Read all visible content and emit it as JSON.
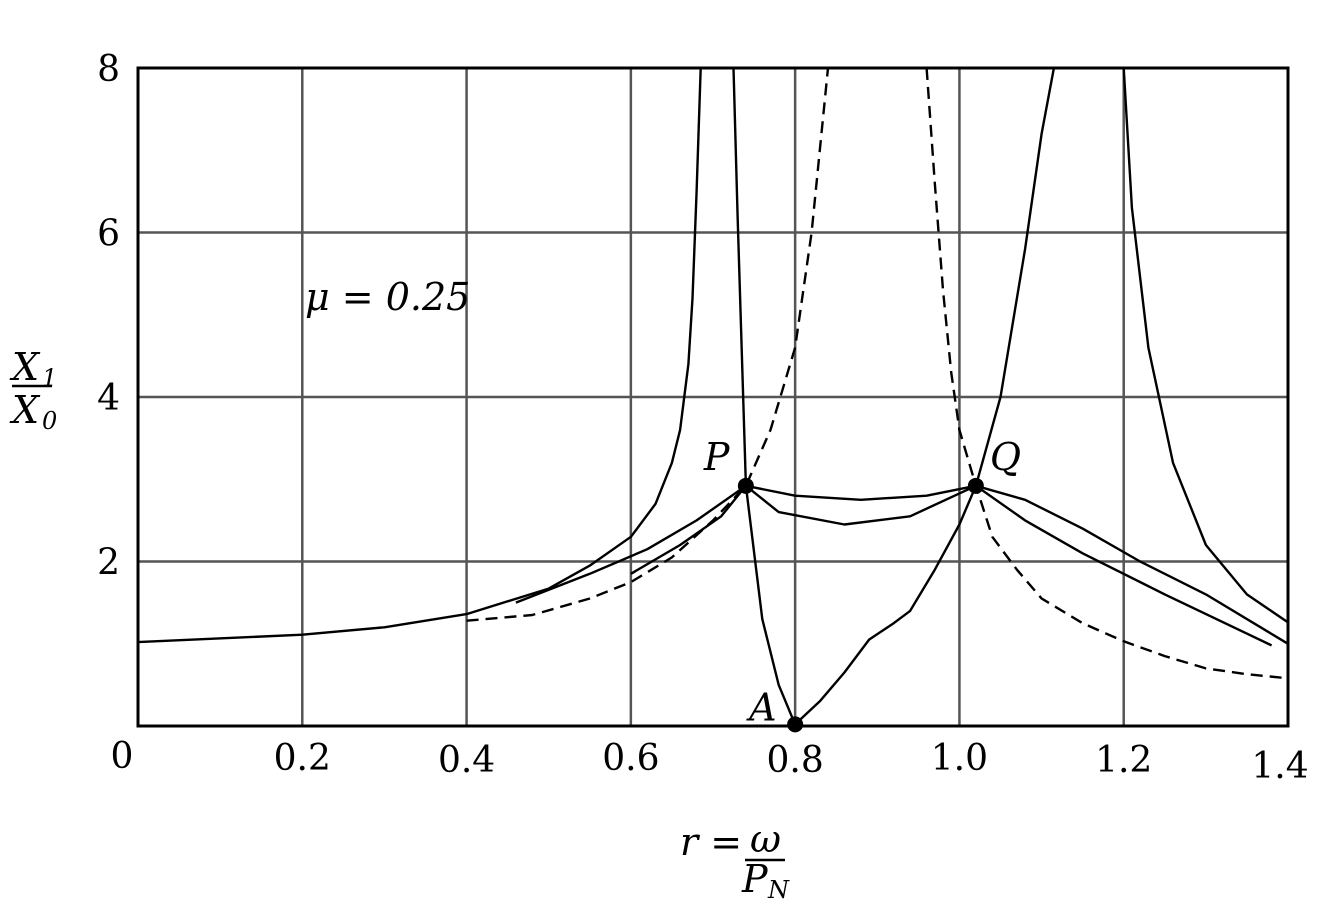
{
  "chart_data": {
    "type": "line",
    "xlim": [
      0,
      1.4
    ],
    "ylim": [
      0,
      8
    ],
    "grid": true,
    "x_ticks": [
      "0",
      "0.2",
      "0.4",
      "0.6",
      "0.8",
      "1.0",
      "1.2",
      "1.4"
    ],
    "x_tick_values": [
      0,
      0.2,
      0.4,
      0.6,
      0.8,
      1.0,
      1.2,
      1.4
    ],
    "y_ticks": [
      "2",
      "4",
      "6",
      "8"
    ],
    "y_tick_values": [
      2,
      4,
      6,
      8
    ],
    "xlabel": {
      "prefix": "r =",
      "numerator": "ω",
      "denominator": "P",
      "denominator_sub": "N"
    },
    "ylabel": {
      "numerator": "X",
      "numerator_sub": "1",
      "denominator": "X",
      "denominator_sub": "0"
    },
    "annotation": "μ = 0.25",
    "points": [
      {
        "label": "P",
        "x": 0.74,
        "y": 2.92
      },
      {
        "label": "Q",
        "x": 1.02,
        "y": 2.92
      },
      {
        "label": "A",
        "x": 0.8,
        "y": 0.02
      }
    ],
    "series": [
      {
        "style": "solid",
        "segments": [
          [
            [
              0,
              1.02
            ],
            [
              0.2,
              1.11
            ],
            [
              0.3,
              1.2
            ],
            [
              0.4,
              1.36
            ],
            [
              0.5,
              1.67
            ],
            [
              0.55,
              1.95
            ],
            [
              0.6,
              2.3
            ],
            [
              0.63,
              2.7
            ],
            [
              0.65,
              3.2
            ],
            [
              0.66,
              3.6
            ],
            [
              0.67,
              4.4
            ],
            [
              0.675,
              5.2
            ],
            [
              0.68,
              6.5
            ],
            [
              0.685,
              8
            ]
          ],
          [
            [
              1.2,
              8
            ],
            [
              1.21,
              6.3
            ],
            [
              1.23,
              4.6
            ],
            [
              1.26,
              3.2
            ],
            [
              1.3,
              2.2
            ],
            [
              1.35,
              1.6
            ],
            [
              1.4,
              1.26
            ]
          ]
        ]
      },
      {
        "style": "solid",
        "segments": [
          [
            [
              0.725,
              8
            ],
            [
              0.73,
              6.2
            ],
            [
              0.74,
              2.92
            ],
            [
              0.76,
              1.3
            ],
            [
              0.78,
              0.5
            ],
            [
              0.8,
              0.02
            ]
          ],
          [
            [
              0.8,
              0.02
            ],
            [
              0.83,
              0.3
            ],
            [
              0.86,
              0.65
            ],
            [
              0.89,
              1.05
            ],
            [
              0.92,
              1.25
            ],
            [
              0.94,
              1.4
            ],
            [
              0.97,
              1.9
            ],
            [
              1.0,
              2.45
            ],
            [
              1.02,
              2.92
            ],
            [
              1.05,
              4.0
            ],
            [
              1.08,
              5.8
            ],
            [
              1.1,
              7.2
            ],
            [
              1.115,
              8
            ]
          ]
        ]
      },
      {
        "style": "solid",
        "segments": [
          [
            [
              0.46,
              1.5
            ],
            [
              0.55,
              1.85
            ],
            [
              0.62,
              2.15
            ],
            [
              0.68,
              2.5
            ],
            [
              0.74,
              2.92
            ],
            [
              0.8,
              2.8
            ],
            [
              0.88,
              2.75
            ],
            [
              0.96,
              2.8
            ],
            [
              1.02,
              2.92
            ],
            [
              1.08,
              2.75
            ],
            [
              1.15,
              2.4
            ],
            [
              1.22,
              2.0
            ],
            [
              1.3,
              1.6
            ],
            [
              1.4,
              1.0
            ]
          ]
        ]
      },
      {
        "style": "solid",
        "segments": [
          [
            [
              0.6,
              1.85
            ],
            [
              0.66,
              2.2
            ],
            [
              0.71,
              2.55
            ],
            [
              0.74,
              2.92
            ],
            [
              0.78,
              2.6
            ],
            [
              0.86,
              2.45
            ],
            [
              0.94,
              2.55
            ],
            [
              1.02,
              2.92
            ],
            [
              1.08,
              2.5
            ],
            [
              1.15,
              2.1
            ],
            [
              1.25,
              1.6
            ],
            [
              1.38,
              0.98
            ]
          ]
        ]
      },
      {
        "style": "dashed",
        "segments": [
          [
            [
              0.4,
              1.28
            ],
            [
              0.48,
              1.35
            ],
            [
              0.55,
              1.55
            ],
            [
              0.6,
              1.75
            ],
            [
              0.65,
              2.05
            ],
            [
              0.7,
              2.5
            ],
            [
              0.74,
              2.92
            ],
            [
              0.77,
              3.6
            ],
            [
              0.8,
              4.6
            ],
            [
              0.82,
              6.0
            ],
            [
              0.83,
              7.0
            ],
            [
              0.84,
              8
            ]
          ],
          [
            [
              0.96,
              8
            ],
            [
              0.97,
              6.6
            ],
            [
              0.98,
              5.3
            ],
            [
              0.99,
              4.3
            ],
            [
              1.0,
              3.6
            ],
            [
              1.02,
              2.92
            ],
            [
              1.04,
              2.3
            ],
            [
              1.07,
              1.9
            ],
            [
              1.1,
              1.55
            ],
            [
              1.15,
              1.25
            ],
            [
              1.2,
              1.03
            ],
            [
              1.25,
              0.85
            ],
            [
              1.3,
              0.7
            ],
            [
              1.35,
              0.63
            ],
            [
              1.4,
              0.58
            ]
          ]
        ]
      }
    ]
  }
}
